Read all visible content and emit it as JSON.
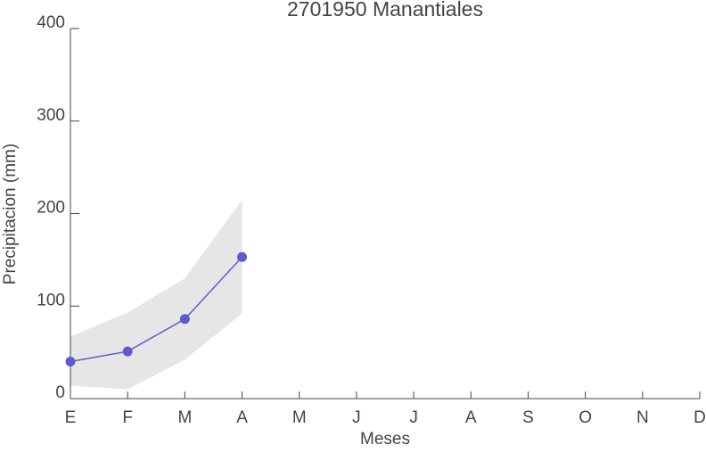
{
  "chart_data": {
    "type": "line",
    "title": "2701950 Manantiales",
    "x_label": "Meses",
    "y_label": "Precipitacion (mm)",
    "categories": [
      "E",
      "F",
      "M",
      "A",
      "M",
      "J",
      "J",
      "A",
      "S",
      "O",
      "N",
      "D"
    ],
    "values": [
      40,
      51,
      86,
      153,
      null,
      null,
      null,
      null,
      null,
      null,
      null,
      null
    ],
    "upper": [
      67,
      93,
      130,
      215,
      null,
      null,
      null,
      null,
      null,
      null,
      null,
      null
    ],
    "lower": [
      14,
      10,
      42,
      92,
      null,
      null,
      null,
      null,
      null,
      null,
      null,
      null
    ],
    "color": "#5c5cd0",
    "band_color": "#e6e6e6",
    "ylim": [
      0,
      400
    ],
    "yticks": [
      0,
      100,
      200,
      300,
      400
    ]
  }
}
